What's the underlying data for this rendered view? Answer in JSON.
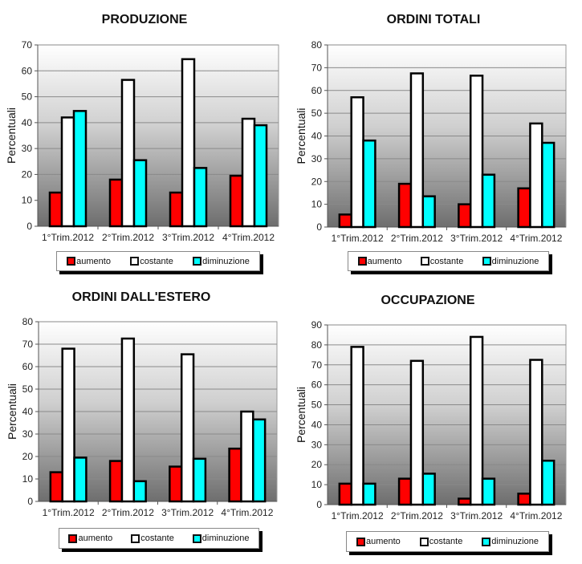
{
  "colors": {
    "aumento": "#ff0000",
    "costante": "#ffffff",
    "diminuzione": "#00ffff",
    "bar_outline": "#000000"
  },
  "chart_data": [
    {
      "type": "bar",
      "title": "PRODUZIONE",
      "xlabel": "",
      "ylabel": "Percentuali",
      "ylim": [
        0,
        70
      ],
      "yticks": [
        0,
        10,
        20,
        30,
        40,
        50,
        60,
        70
      ],
      "grid": true,
      "legend_position": "bottom",
      "categories": [
        "1°Trim.2012",
        "2°Trim.2012",
        "3°Trim.2012",
        "4°Trim.2012"
      ],
      "series": [
        {
          "name": "aumento",
          "values": [
            13,
            18,
            13,
            19.5
          ]
        },
        {
          "name": "costante",
          "values": [
            42,
            56.5,
            64.5,
            41.5
          ]
        },
        {
          "name": "diminuzione",
          "values": [
            44.5,
            25.5,
            22.5,
            39
          ]
        }
      ]
    },
    {
      "type": "bar",
      "title": "ORDINI TOTALI",
      "xlabel": "",
      "ylabel": "Percentuali",
      "ylim": [
        0,
        80
      ],
      "yticks": [
        0,
        10,
        20,
        30,
        40,
        50,
        60,
        70,
        80
      ],
      "grid": true,
      "legend_position": "bottom",
      "categories": [
        "1°Trim.2012",
        "2°Trim.2012",
        "3°Trim.2012",
        "4°Trim.2012"
      ],
      "series": [
        {
          "name": "aumento",
          "values": [
            5.5,
            19,
            10,
            17
          ]
        },
        {
          "name": "costante",
          "values": [
            57,
            67.5,
            66.5,
            45.5
          ]
        },
        {
          "name": "diminuzione",
          "values": [
            38,
            13.5,
            23,
            37
          ]
        }
      ]
    },
    {
      "type": "bar",
      "title": "ORDINI DALL'ESTERO",
      "xlabel": "",
      "ylabel": "Percentuali",
      "ylim": [
        0,
        80
      ],
      "yticks": [
        0,
        10,
        20,
        30,
        40,
        50,
        60,
        70,
        80
      ],
      "grid": true,
      "legend_position": "bottom",
      "categories": [
        "1°Trim.2012",
        "2°Trim.2012",
        "3°Trim.2012",
        "4°Trim.2012"
      ],
      "series": [
        {
          "name": "aumento",
          "values": [
            13,
            18,
            15.5,
            23.5
          ]
        },
        {
          "name": "costante",
          "values": [
            68,
            72.5,
            65.5,
            40
          ]
        },
        {
          "name": "diminuzione",
          "values": [
            19.5,
            9,
            19,
            36.5
          ]
        }
      ]
    },
    {
      "type": "bar",
      "title": "OCCUPAZIONE",
      "xlabel": "",
      "ylabel": "Percentuali",
      "ylim": [
        0,
        90
      ],
      "yticks": [
        0,
        10,
        20,
        30,
        40,
        50,
        60,
        70,
        80,
        90
      ],
      "grid": true,
      "legend_position": "bottom",
      "categories": [
        "1°Trim.2012",
        "2°Trim.2012",
        "3°Trim.2012",
        "4°Trim.2012"
      ],
      "series": [
        {
          "name": "aumento",
          "values": [
            10.5,
            13,
            3,
            5.5
          ]
        },
        {
          "name": "costante",
          "values": [
            79,
            72,
            84,
            72.5
          ]
        },
        {
          "name": "diminuzione",
          "values": [
            10.5,
            15.5,
            13,
            22
          ]
        }
      ]
    }
  ]
}
